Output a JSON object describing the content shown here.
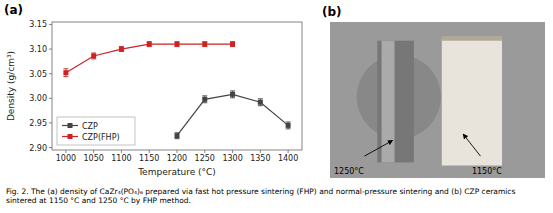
{
  "chart_data": {
    "type": "line",
    "x_label": "Temperature (°C)",
    "y_label": "Density (g/cm³)",
    "annotations": [
      "(a)",
      "(b)",
      "1250°C",
      "1150°C",
      "Fig. 2.  The (a) density of CaZr₄(PO₄)₆ prepared via fast hot pressure sintering (FHP) and normal-pressure sintering and (b) CZP ceramics sintered at 1150 °C and 1250 °C by FHP method."
    ],
    "series": [
      {
        "name": "CZP",
        "color": "#444444",
        "marker": "square",
        "x": [
          1200,
          1250,
          1300,
          1350,
          1400
        ],
        "values": [
          2.924,
          2.998,
          3.008,
          2.992,
          2.945
        ],
        "errors": [
          0.006,
          0.007,
          0.007,
          0.007,
          0.007
        ]
      },
      {
        "name": "CZP(FHP)",
        "color": "#cc2222",
        "marker": "square",
        "x": [
          1000,
          1050,
          1100,
          1150,
          1200,
          1250,
          1300
        ],
        "values": [
          3.052,
          3.086,
          3.1,
          3.11,
          3.11,
          3.11,
          3.11
        ],
        "errors": [
          0.008,
          0.006,
          0.005,
          0.005,
          0.005,
          0.005,
          0.005
        ]
      }
    ],
    "xlim": [
      975,
      1425
    ],
    "ylim": [
      2.895,
      3.155
    ],
    "xticks": [
      1000,
      1050,
      1100,
      1150,
      1200,
      1250,
      1300,
      1350,
      1400
    ],
    "yticks": [
      {
        "value": 2.9,
        "label": "2.90"
      },
      2.95,
      {
        "value": 3.0,
        "label": "3.00"
      },
      3.05,
      {
        "value": 3.1,
        "label": "3.10"
      },
      3.15
    ],
    "grid": false,
    "legend": "lower left"
  }
}
